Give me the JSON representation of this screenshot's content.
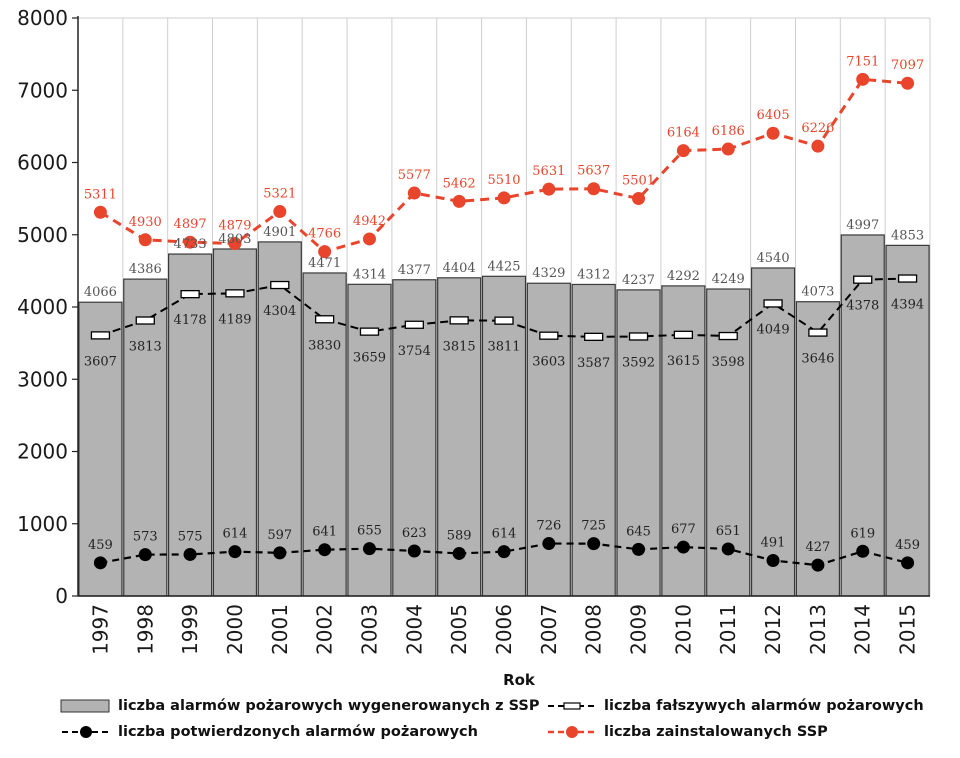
{
  "chart_data": {
    "type": "bar+line",
    "title": "",
    "xlabel": "Rok",
    "ylabel": "",
    "ylim": [
      0,
      8000
    ],
    "yticks": [
      0,
      1000,
      2000,
      3000,
      4000,
      5000,
      6000,
      7000,
      8000
    ],
    "grid": "vertical",
    "categories": [
      "1997",
      "1998",
      "1999",
      "2000",
      "2001",
      "2002",
      "2003",
      "2004",
      "2005",
      "2006",
      "2007",
      "2008",
      "2009",
      "2010",
      "2011",
      "2012",
      "2013",
      "2014",
      "2015"
    ],
    "series": [
      {
        "name": "liczba alarmów pożarowych wygenerowanych z SSP",
        "kind": "bar",
        "color": "#b3b3b3",
        "values": [
          4066,
          4386,
          4733,
          4803,
          4901,
          4471,
          4314,
          4377,
          4404,
          4425,
          4329,
          4312,
          4237,
          4292,
          4249,
          4540,
          4073,
          4997,
          4853
        ],
        "labels": [
          "4066",
          "4386",
          "4733",
          "4803",
          "4901",
          "4471",
          "4314",
          "4377",
          "4404",
          "4425",
          "4329",
          "4312",
          "4237",
          "4292",
          "4249",
          "4540",
          "4073",
          "4997",
          "4853"
        ]
      },
      {
        "name": "liczba fałszywych alarmów pożarowych",
        "kind": "line",
        "color": "#000000",
        "values": [
          3607,
          3813,
          4178,
          4189,
          4304,
          3830,
          3659,
          3754,
          3815,
          3811,
          3603,
          3587,
          3592,
          3615,
          3598,
          4049,
          3646,
          4378,
          4394
        ],
        "labels": [
          "3607",
          "3813",
          "4178",
          "4189",
          "4304",
          "3830",
          "3659",
          "3754",
          "3815",
          "3811",
          "3603",
          "3587",
          "3592",
          "3615",
          "3598",
          "4049",
          "3646",
          "4378",
          "4394"
        ]
      },
      {
        "name": "liczba potwierdzonych alarmów pożarowych",
        "kind": "line",
        "color": "#000000",
        "values": [
          459,
          573,
          575,
          614,
          597,
          641,
          655,
          623,
          589,
          614,
          726,
          725,
          645,
          677,
          651,
          491,
          427,
          619,
          459
        ],
        "labels": [
          "459",
          "573",
          "575",
          "614",
          "597",
          "641",
          "655",
          "623",
          "589",
          "614",
          "726",
          "725",
          "645",
          "677",
          "651",
          "491",
          "427",
          "619",
          "459"
        ]
      },
      {
        "name": "liczba zainstalowanych SSP",
        "kind": "line",
        "color": "#e8452c",
        "values": [
          5311,
          4930,
          4897,
          4879,
          5321,
          4766,
          4942,
          5577,
          5462,
          5510,
          5631,
          5637,
          5501,
          6164,
          6186,
          6405,
          6226,
          7151,
          7097
        ],
        "labels": [
          "5311",
          "4930",
          "4897",
          "4879",
          "5321",
          "4766",
          "4942",
          "5577",
          "5462",
          "5510",
          "5631",
          "5637",
          "5501",
          "6164",
          "6186",
          "6405",
          "6226",
          "7151",
          "7097"
        ]
      }
    ],
    "legend_position": "bottom"
  }
}
